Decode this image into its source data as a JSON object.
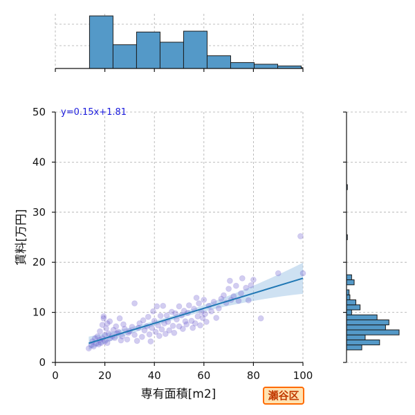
{
  "badge": "瀬谷区",
  "colors": {
    "bar": "#5499c8",
    "point": "#6a5acd",
    "line": "#1f77b4",
    "band": "#a6c8e8",
    "equation": "#1a1adc",
    "badge_border": "#ff6a00",
    "badge_bg": "#ffe3b3"
  },
  "chart_data": {
    "type": "scatter",
    "xlabel": "専有面積[m2]",
    "ylabel": "賃料[万円]",
    "xlim": [
      0,
      100
    ],
    "ylim": [
      0,
      50
    ],
    "xticks": [
      0,
      20,
      40,
      60,
      80,
      100
    ],
    "yticks": [
      0,
      10,
      20,
      30,
      40,
      50
    ],
    "grid": true,
    "regression": {
      "label": "y=0.15x+1.81",
      "slope": 0.15,
      "intercept": 1.81,
      "x_range": [
        13.5,
        100
      ]
    },
    "points": [
      [
        13.5,
        2.8
      ],
      [
        14.5,
        3.5
      ],
      [
        15,
        4.2
      ],
      [
        15.5,
        3.2
      ],
      [
        16,
        4.8
      ],
      [
        16.5,
        3.8
      ],
      [
        17,
        5.2
      ],
      [
        17.5,
        3.6
      ],
      [
        18,
        4.5
      ],
      [
        18,
        6.2
      ],
      [
        18.5,
        3.9
      ],
      [
        19,
        4.8
      ],
      [
        19,
        7.5
      ],
      [
        19.5,
        8.8
      ],
      [
        19.5,
        9.2
      ],
      [
        20,
        5.5
      ],
      [
        20,
        4.2
      ],
      [
        20.5,
        6.8
      ],
      [
        21,
        7.8
      ],
      [
        21,
        3.9
      ],
      [
        21.5,
        5.8
      ],
      [
        22,
        4.8
      ],
      [
        22,
        8.2
      ],
      [
        23,
        5.3
      ],
      [
        23.5,
        6.5
      ],
      [
        24,
        4.9
      ],
      [
        24.5,
        7.2
      ],
      [
        25,
        5.8
      ],
      [
        25.5,
        6.1
      ],
      [
        26,
        8.8
      ],
      [
        26.5,
        4.4
      ],
      [
        27,
        5.2
      ],
      [
        27.5,
        7.6
      ],
      [
        28,
        6.7
      ],
      [
        29,
        4.6
      ],
      [
        29.5,
        5.9
      ],
      [
        30,
        6.2
      ],
      [
        31,
        7.1
      ],
      [
        32,
        11.8
      ],
      [
        32,
        5.5
      ],
      [
        33,
        4.3
      ],
      [
        33.5,
        6.9
      ],
      [
        34,
        7.8
      ],
      [
        35,
        5.1
      ],
      [
        35.5,
        8.4
      ],
      [
        36,
        6.4
      ],
      [
        37,
        7.2
      ],
      [
        37.5,
        9.1
      ],
      [
        38,
        5.6
      ],
      [
        38.5,
        4.2
      ],
      [
        39,
        6.9
      ],
      [
        39.5,
        10.2
      ],
      [
        40,
        8.3
      ],
      [
        40.5,
        6.1
      ],
      [
        41,
        11.2
      ],
      [
        41.5,
        7.4
      ],
      [
        42,
        5.3
      ],
      [
        42.5,
        9.3
      ],
      [
        43,
        6.6
      ],
      [
        43.5,
        11.3
      ],
      [
        44,
        7.8
      ],
      [
        44.5,
        5.7
      ],
      [
        45,
        9.4
      ],
      [
        45.5,
        8.1
      ],
      [
        46,
        6.4
      ],
      [
        47,
        10.1
      ],
      [
        47.5,
        7.3
      ],
      [
        48,
        5.9
      ],
      [
        48.5,
        9.8
      ],
      [
        49,
        8.6
      ],
      [
        50,
        7.2
      ],
      [
        50,
        11.2
      ],
      [
        51,
        9.4
      ],
      [
        51.5,
        6.7
      ],
      [
        52,
        10.3
      ],
      [
        52.5,
        8.2
      ],
      [
        53,
        7.6
      ],
      [
        53.5,
        9.9
      ],
      [
        54,
        11.4
      ],
      [
        55,
        8.3
      ],
      [
        55.5,
        6.9
      ],
      [
        56,
        10.7
      ],
      [
        56.5,
        7.8
      ],
      [
        57,
        12.9
      ],
      [
        57.5,
        9.2
      ],
      [
        58,
        11.8
      ],
      [
        58.5,
        7.4
      ],
      [
        59,
        10.1
      ],
      [
        59.5,
        8.9
      ],
      [
        60,
        12.5
      ],
      [
        60.5,
        9.7
      ],
      [
        61,
        8.1
      ],
      [
        62,
        11.3
      ],
      [
        63,
        10.2
      ],
      [
        64,
        12.1
      ],
      [
        65,
        8.9
      ],
      [
        66,
        10.8
      ],
      [
        67,
        12.7
      ],
      [
        68,
        13.4
      ],
      [
        69,
        11.9
      ],
      [
        70,
        14.7
      ],
      [
        70.5,
        16.3
      ],
      [
        71,
        12.5
      ],
      [
        72,
        13.2
      ],
      [
        73,
        15.3
      ],
      [
        74,
        12.3
      ],
      [
        75,
        13.8
      ],
      [
        75.5,
        16.8
      ],
      [
        77,
        14.9
      ],
      [
        78,
        12.4
      ],
      [
        79,
        15.4
      ],
      [
        80,
        16.5
      ],
      [
        83,
        8.8
      ],
      [
        90,
        17.8
      ],
      [
        99,
        25.2
      ],
      [
        100,
        17.8
      ]
    ],
    "top_histogram": {
      "bin_edges": [
        13.8,
        23.3,
        32.8,
        42.3,
        51.8,
        61.3,
        70.8,
        80.3,
        89.8,
        99.3,
        100
      ],
      "counts": [
        62,
        28,
        43,
        31,
        44,
        15,
        7,
        5,
        3,
        1
      ]
    },
    "right_histogram": {
      "bins": [
        {
          "y0": 2.5,
          "y1": 3.5,
          "count": 18
        },
        {
          "y0": 3.5,
          "y1": 4.5,
          "count": 39
        },
        {
          "y0": 4.5,
          "y1": 5.5,
          "count": 22
        },
        {
          "y0": 5.5,
          "y1": 6.5,
          "count": 62
        },
        {
          "y0": 6.5,
          "y1": 7.5,
          "count": 46
        },
        {
          "y0": 7.5,
          "y1": 8.5,
          "count": 50
        },
        {
          "y0": 8.5,
          "y1": 9.5,
          "count": 36
        },
        {
          "y0": 9.5,
          "y1": 10.5,
          "count": 6
        },
        {
          "y0": 10.5,
          "y1": 11.5,
          "count": 16
        },
        {
          "y0": 11.5,
          "y1": 12.5,
          "count": 11
        },
        {
          "y0": 12.5,
          "y1": 13.5,
          "count": 4
        },
        {
          "y0": 13.5,
          "y1": 14.5,
          "count": 3
        },
        {
          "y0": 15.5,
          "y1": 16.5,
          "count": 9
        },
        {
          "y0": 16.5,
          "y1": 17.5,
          "count": 6
        },
        {
          "y0": 24.5,
          "y1": 25.5,
          "count": 1
        },
        {
          "y0": 34.5,
          "y1": 35.5,
          "count": 1
        }
      ]
    }
  }
}
